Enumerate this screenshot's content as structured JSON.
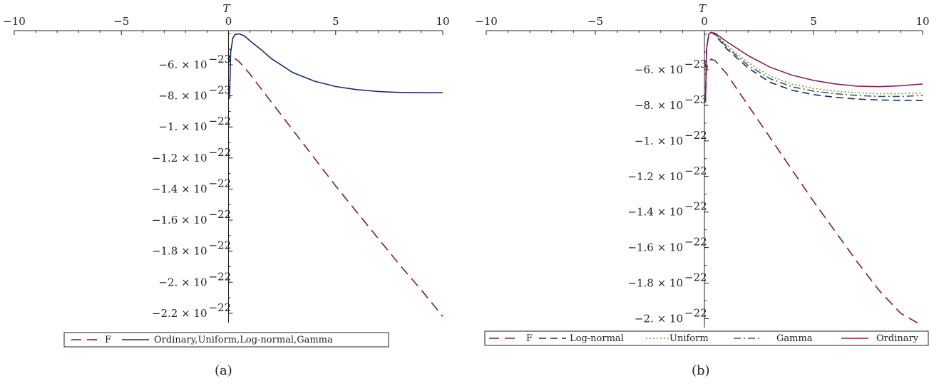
{
  "chart_data": [
    {
      "type": "line",
      "caption": "(a)",
      "xlabel": "T",
      "xlim": [
        -10,
        10
      ],
      "xticks": [
        -10,
        -5,
        0,
        5,
        10
      ],
      "ylim": [
        -2.26e-22,
        -3.8e-23
      ],
      "yticks": [
        {
          "value": -6e-23,
          "label": "-6. × 10",
          "exp": "-23"
        },
        {
          "value": -8e-23,
          "label": "-8. × 10",
          "exp": "-23"
        },
        {
          "value": -1e-22,
          "label": "-1. × 10",
          "exp": "-22"
        },
        {
          "value": -1.2e-22,
          "label": "-1.2 × 10",
          "exp": "-22"
        },
        {
          "value": -1.4e-22,
          "label": "-1.4 × 10",
          "exp": "-22"
        },
        {
          "value": -1.6e-22,
          "label": "-1.6 × 10",
          "exp": "-22"
        },
        {
          "value": -1.8e-22,
          "label": "-1.8 × 10",
          "exp": "-22"
        },
        {
          "value": -2e-22,
          "label": "-2. × 10",
          "exp": "-22"
        },
        {
          "value": -2.2e-22,
          "label": "-2.2 × 10",
          "exp": "-22"
        }
      ],
      "series": [
        {
          "name": "F",
          "color": "#7b1e32",
          "dash": "long-dash",
          "x": [
            0.3,
            0.5,
            1,
            2,
            3,
            4,
            5,
            6,
            7,
            8,
            9,
            10
          ],
          "y": [
            -5.6e-23,
            -5.8e-23,
            -6.6e-23,
            -8.4e-23,
            -1.02e-22,
            -1.2e-22,
            -1.38e-22,
            -1.55e-22,
            -1.72e-22,
            -1.89e-22,
            -2.05e-22,
            -2.22e-22
          ]
        },
        {
          "name": "Ordinary,Uniform,Log-normal,Gamma",
          "color": "#1a2a6c",
          "dash": "solid",
          "x": [
            0.05,
            0.1,
            0.2,
            0.3,
            0.5,
            0.75,
            1,
            1.5,
            2,
            3,
            4,
            5,
            6,
            7,
            8,
            9,
            10
          ],
          "y": [
            -8.2e-23,
            -5.2e-23,
            -4.3e-23,
            -4.05e-23,
            -4e-23,
            -4.15e-23,
            -4.45e-23,
            -5e-23,
            -5.6e-23,
            -6.5e-23,
            -7.05e-23,
            -7.4e-23,
            -7.6e-23,
            -7.72e-23,
            -7.78e-23,
            -7.8e-23,
            -7.8e-23
          ]
        }
      ]
    },
    {
      "type": "line",
      "caption": "(b)",
      "xlabel": "T",
      "xlim": [
        -10,
        10
      ],
      "xticks": [
        -10,
        -5,
        0,
        5,
        10
      ],
      "ylim": [
        -2.05e-22,
        -3.8e-23
      ],
      "yticks": [
        {
          "value": -6e-23,
          "label": "-6. × 10",
          "exp": "-23"
        },
        {
          "value": -8e-23,
          "label": "-8. × 10",
          "exp": "-23"
        },
        {
          "value": -1e-22,
          "label": "-1. × 10",
          "exp": "-22"
        },
        {
          "value": -1.2e-22,
          "label": "-1.2 × 10",
          "exp": "-22"
        },
        {
          "value": -1.4e-22,
          "label": "-1.4 × 10",
          "exp": "-22"
        },
        {
          "value": -1.6e-22,
          "label": "-1.6 × 10",
          "exp": "-22"
        },
        {
          "value": -1.8e-22,
          "label": "-1.8 × 10",
          "exp": "-22"
        },
        {
          "value": -2e-22,
          "label": "-2. × 10",
          "exp": "-22"
        }
      ],
      "series": [
        {
          "name": "F",
          "color": "#7b1e32",
          "dash": "long-dash",
          "x": [
            0.05,
            0.15,
            0.3,
            0.5,
            1,
            2,
            3,
            4,
            5,
            6,
            7,
            8,
            9,
            10
          ],
          "y": [
            -6.3e-23,
            -5.7e-23,
            -5.4e-23,
            -5.5e-23,
            -6.2e-23,
            -8e-23,
            -9.8e-23,
            -1.16e-22,
            -1.34e-22,
            -1.51e-22,
            -1.68e-22,
            -1.84e-22,
            -1.97e-22,
            -2.04e-22
          ]
        },
        {
          "name": "Log-normal",
          "color": "#1a2a6c",
          "dash": "medium-dash",
          "x": [
            0.05,
            0.1,
            0.2,
            0.3,
            0.5,
            1,
            2,
            3,
            4,
            5,
            6,
            7,
            8,
            9,
            10
          ],
          "y": [
            -7.8e-23,
            -4.8e-23,
            -4e-23,
            -3.9e-23,
            -4.05e-23,
            -4.8e-23,
            -5.9e-23,
            -6.7e-23,
            -7.15e-23,
            -7.4e-23,
            -7.55e-23,
            -7.65e-23,
            -7.7e-23,
            -7.72e-23,
            -7.73e-23
          ]
        },
        {
          "name": "Uniform",
          "color": "#7a9a3a",
          "dash": "dotted",
          "x": [
            0.05,
            0.1,
            0.2,
            0.3,
            0.5,
            1,
            2,
            3,
            4,
            5,
            6,
            7,
            8,
            9,
            10
          ],
          "y": [
            -7.8e-23,
            -4.8e-23,
            -4e-23,
            -3.9e-23,
            -4e-23,
            -4.6e-23,
            -5.6e-23,
            -6.35e-23,
            -6.8e-23,
            -7.05e-23,
            -7.2e-23,
            -7.3e-23,
            -7.35e-23,
            -7.35e-23,
            -7.3e-23
          ]
        },
        {
          "name": "Gamma",
          "color": "#3d5a5c",
          "dash": "dash-dot",
          "x": [
            0.05,
            0.1,
            0.2,
            0.3,
            0.5,
            1,
            2,
            3,
            4,
            5,
            6,
            7,
            8,
            9,
            10
          ],
          "y": [
            -7.8e-23,
            -4.8e-23,
            -4e-23,
            -3.9e-23,
            -4.02e-23,
            -4.7e-23,
            -5.75e-23,
            -6.5e-23,
            -6.95e-23,
            -7.2e-23,
            -7.35e-23,
            -7.45e-23,
            -7.5e-23,
            -7.5e-23,
            -7.45e-23
          ]
        },
        {
          "name": "Ordinary",
          "color": "#8b1e5a",
          "dash": "solid",
          "x": [
            0.05,
            0.1,
            0.2,
            0.3,
            0.5,
            1,
            2,
            3,
            4,
            5,
            6,
            7,
            8,
            9,
            10
          ],
          "y": [
            -7.8e-23,
            -4.8e-23,
            -4e-23,
            -3.9e-23,
            -3.95e-23,
            -4.4e-23,
            -5.2e-23,
            -5.85e-23,
            -6.3e-23,
            -6.6e-23,
            -6.8e-23,
            -6.92e-23,
            -6.95e-23,
            -6.9e-23,
            -6.8e-23
          ]
        }
      ]
    }
  ]
}
